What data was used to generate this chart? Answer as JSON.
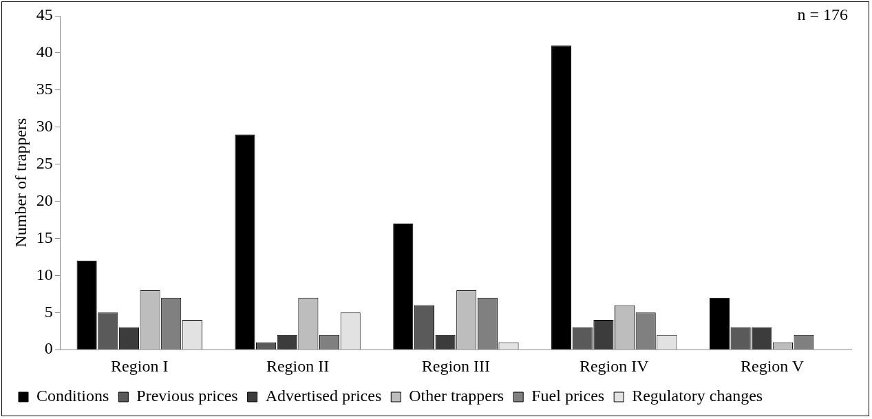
{
  "chart_data": {
    "type": "bar",
    "ylabel": "Number of trappers",
    "categories": [
      "Region I",
      "Region II",
      "Region III",
      "Region IV",
      "Region V"
    ],
    "series": [
      {
        "name": "Conditions",
        "color": "#000000",
        "values": [
          12,
          29,
          17,
          41,
          7
        ]
      },
      {
        "name": "Previous prices",
        "color": "#5a5a5a",
        "values": [
          5,
          1,
          6,
          3,
          3
        ]
      },
      {
        "name": "Advertised prices",
        "color": "#3c3c3c",
        "values": [
          3,
          2,
          2,
          4,
          3
        ]
      },
      {
        "name": "Other trappers",
        "color": "#bdbdbd",
        "values": [
          8,
          7,
          8,
          6,
          1
        ]
      },
      {
        "name": "Fuel prices",
        "color": "#808080",
        "values": [
          7,
          2,
          7,
          5,
          2
        ]
      },
      {
        "name": "Regulatory changes",
        "color": "#e2e2e2",
        "values": [
          4,
          5,
          1,
          2,
          0
        ]
      }
    ],
    "ylim": [
      0,
      45
    ],
    "yticks": [
      0,
      5,
      10,
      15,
      20,
      25,
      30,
      35,
      40,
      45
    ],
    "grid": false,
    "legend": "bottom",
    "annotations": [
      "n = 176"
    ]
  }
}
